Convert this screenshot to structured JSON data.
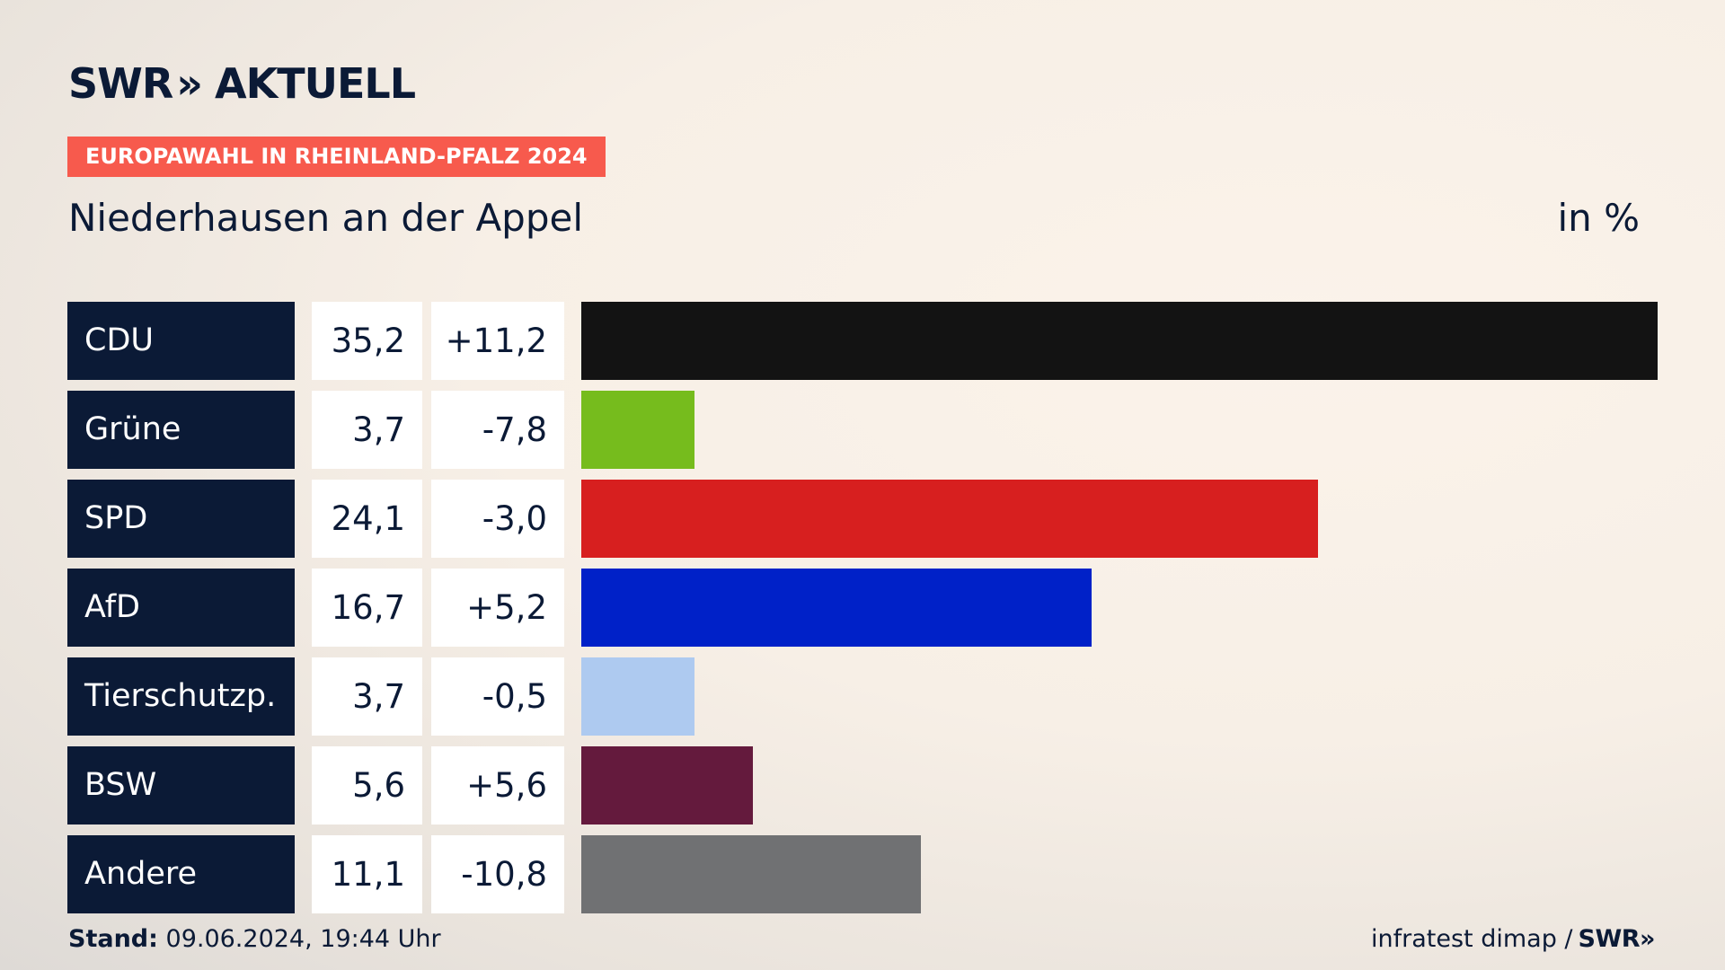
{
  "brand": {
    "logo_left": "SWR",
    "logo_chevrons": "»",
    "logo_right": "AKTUELL"
  },
  "header": {
    "tag": "EUROPAWAHL IN RHEINLAND-PFALZ 2024",
    "subtitle": "Niederhausen an der Appel",
    "unit": "in %"
  },
  "chart_data": {
    "type": "bar",
    "orientation": "horizontal",
    "categories": [
      "CDU",
      "Grüne",
      "SPD",
      "AfD",
      "Tierschutzp.",
      "BSW",
      "Andere"
    ],
    "values": [
      35.2,
      3.7,
      24.1,
      16.7,
      3.7,
      5.6,
      11.1
    ],
    "values_label": [
      "35,2",
      "3,7",
      "24,1",
      "16,7",
      "3,7",
      "5,6",
      "11,1"
    ],
    "diff_label": [
      "+11,2",
      "-7,8",
      "-3,0",
      "+5,2",
      "-0,5",
      "+5,6",
      "-10,8"
    ],
    "colors": [
      "#131313",
      "#76bc1d",
      "#d71f1f",
      "#0021c8",
      "#aecaf0",
      "#641a3d",
      "#707173"
    ],
    "xlim": [
      0,
      35.2
    ],
    "grid": false
  },
  "footer": {
    "stand_label": "Stand:",
    "stand_value": "09.06.2024, 19:44 Uhr",
    "source": "infratest dimap /",
    "source_logo": "SWR»"
  }
}
